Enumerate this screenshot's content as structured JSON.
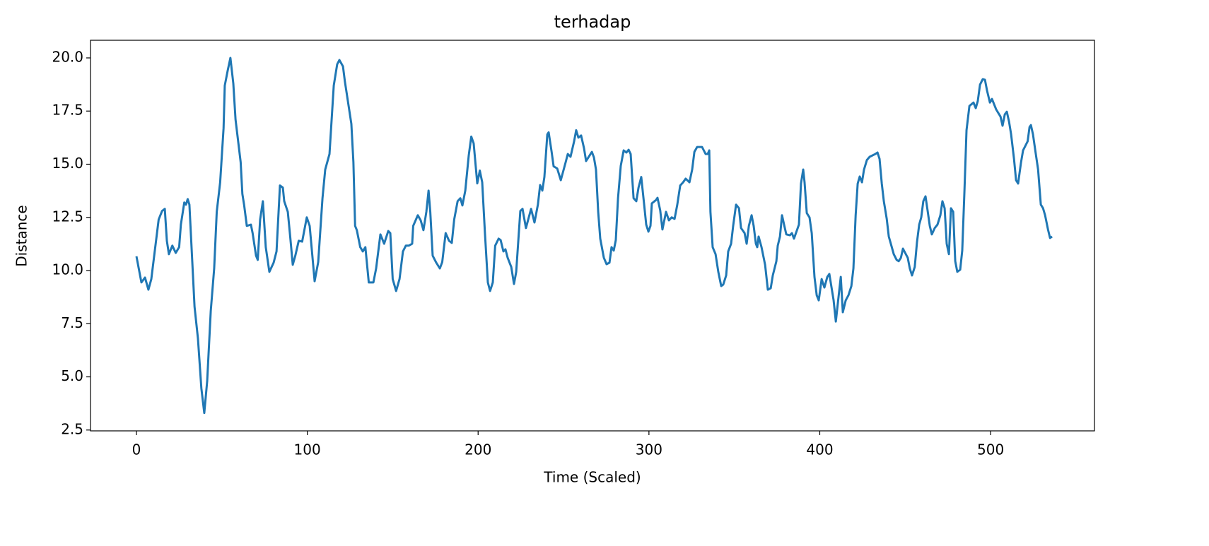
{
  "chart_data": {
    "type": "line",
    "title": "terhadap",
    "x_label": "Time (Scaled)",
    "y_label": "Distance",
    "color": "#1f77b4",
    "x": [
      0,
      2.9,
      5,
      7,
      8.7,
      13,
      15,
      16.6,
      17.8,
      19,
      21,
      23,
      25,
      26,
      28,
      29,
      30,
      31,
      34,
      36,
      38,
      39.7,
      41.4,
      43.5,
      45.5,
      47,
      49,
      51,
      51.7,
      53.4,
      55,
      56.7,
      58,
      61,
      62,
      63,
      64.6,
      67,
      68,
      70,
      71,
      72.4,
      74,
      75.7,
      77.8,
      80.3,
      82,
      84,
      85.7,
      86.5,
      88.6,
      90,
      91.5,
      93,
      95,
      97,
      99.7,
      101.4,
      104.3,
      106.4,
      108.9,
      110.5,
      113,
      115.5,
      117.5,
      118.8,
      120.9,
      122,
      125.8,
      127,
      128,
      129,
      131,
      132.5,
      134,
      136,
      138.7,
      140.3,
      142.8,
      145,
      147.4,
      148.6,
      150,
      152,
      154,
      156,
      157.7,
      159.4,
      161.4,
      162,
      164.7,
      166.4,
      168,
      169.7,
      171,
      172,
      173.4,
      175.5,
      177.6,
      179,
      181,
      183,
      184.6,
      186,
      188,
      189.6,
      190.8,
      192.5,
      194.5,
      196,
      197.4,
      199.5,
      201,
      202.4,
      204,
      205.7,
      207,
      208.6,
      210,
      212,
      213.2,
      214.8,
      216,
      217.3,
      219.4,
      221,
      222.3,
      224.7,
      226,
      228,
      231,
      233,
      235,
      236.3,
      237.6,
      238.8,
      240.5,
      241.3,
      243,
      244.2,
      246.3,
      248.4,
      251.2,
      252.5,
      254.1,
      256.2,
      257.4,
      258.7,
      260.3,
      262,
      263.2,
      266.6,
      267.8,
      269,
      270.3,
      271.5,
      273.6,
      275.2,
      276.9,
      278.1,
      279.4,
      280.6,
      281.9,
      283.5,
      285.2,
      286.8,
      288.1,
      289.3,
      291,
      292.6,
      293.9,
      295.5,
      297.2,
      298.4,
      299.7,
      300.9,
      301.7,
      304.2,
      305,
      306.6,
      307.9,
      310,
      311.7,
      313.3,
      315,
      316.6,
      318.3,
      320,
      321.5,
      323.7,
      325.3,
      326.6,
      328.2,
      331.1,
      333.2,
      334.4,
      335.3,
      336,
      337.3,
      339,
      340.6,
      342.3,
      343.5,
      345.2,
      346.4,
      348.1,
      349.3,
      351,
      352.7,
      353.9,
      356,
      357.2,
      358.5,
      360.1,
      361.3,
      362.6,
      363.4,
      364.2,
      365.9,
      368,
      369.6,
      371.3,
      372.5,
      374.6,
      375.4,
      376.7,
      377.9,
      379.1,
      380.4,
      382.5,
      383.7,
      384.9,
      387.8,
      389,
      390.3,
      391.1,
      392.4,
      394,
      395.3,
      396.9,
      398.2,
      399.4,
      401.1,
      402.7,
      404.4,
      405.6,
      408.1,
      409.4,
      411,
      412.3,
      413.5,
      415.2,
      416.8,
      418.5,
      419.7,
      421,
      422.2,
      423.4,
      424.7,
      425.9,
      427.6,
      429.2,
      432.5,
      433.8,
      435,
      436.3,
      437.5,
      439.2,
      440.4,
      441.6,
      443.3,
      445,
      446.2,
      447.5,
      448.7,
      451.5,
      452.7,
      454,
      455.6,
      456.9,
      458.2,
      459.4,
      460.6,
      461.9,
      463.1,
      464.4,
      465.6,
      467.3,
      468.9,
      470.6,
      471.8,
      473.1,
      474.3,
      475.6,
      476.8,
      478.1,
      479.3,
      480.5,
      482.2,
      483.4,
      484.7,
      485.9,
      487.6,
      490,
      491.3,
      492.5,
      493.8,
      495.4,
      496.7,
      497.9,
      499.6,
      500.8,
      503.3,
      505.8,
      507,
      508.3,
      509.5,
      510.8,
      512,
      513.7,
      514.9,
      516.1,
      517.8,
      519,
      521.7,
      522.8,
      523.6,
      524.8,
      526.1,
      527.8,
      529.4,
      530.7,
      531.9,
      533.6,
      534.8,
      536
    ],
    "values": [
      10.67,
      9.44,
      9.67,
      9.1,
      9.6,
      12.4,
      12.8,
      12.9,
      11.4,
      10.77,
      11.17,
      10.83,
      11.1,
      12.16,
      13.2,
      13.1,
      13.36,
      13.1,
      8.3,
      6.8,
      4.46,
      3.3,
      4.8,
      8.1,
      10.1,
      12.76,
      14.15,
      16.7,
      18.7,
      19.4,
      20,
      18.8,
      17.1,
      15.1,
      13.6,
      13.1,
      12.1,
      12.16,
      11.76,
      10.7,
      10.5,
      12.4,
      13.26,
      11.1,
      9.94,
      10.37,
      10.9,
      14,
      13.9,
      13.26,
      12.76,
      11.6,
      10.27,
      10.7,
      11.4,
      11.36,
      12.5,
      12.1,
      9.5,
      10.4,
      13.4,
      14.75,
      15.48,
      18.7,
      19.7,
      19.9,
      19.6,
      18.9,
      16.9,
      15.1,
      12.1,
      11.9,
      11.1,
      10.9,
      11.1,
      9.44,
      9.44,
      10.1,
      11.7,
      11.26,
      11.86,
      11.76,
      9.6,
      9.04,
      9.6,
      10.9,
      11.17,
      11.17,
      11.26,
      12.1,
      12.6,
      12.36,
      11.9,
      12.76,
      13.76,
      12.76,
      10.7,
      10.37,
      10.1,
      10.4,
      11.76,
      11.4,
      11.3,
      12.4,
      13.26,
      13.4,
      13.06,
      13.76,
      15.4,
      16.3,
      15.98,
      14.1,
      14.7,
      14.15,
      11.76,
      9.44,
      9.04,
      9.44,
      11.17,
      11.5,
      11.43,
      10.9,
      11,
      10.6,
      10.17,
      9.37,
      9.94,
      12.8,
      12.9,
      12,
      12.9,
      12.26,
      13.1,
      14.02,
      13.76,
      14.4,
      16.4,
      16.5,
      15.6,
      14.9,
      14.8,
      14.25,
      15.08,
      15.48,
      15.35,
      16.08,
      16.6,
      16.25,
      16.35,
      15.75,
      15.15,
      15.58,
      15.32,
      14.75,
      12.76,
      11.5,
      10.6,
      10.3,
      10.37,
      11.1,
      10.94,
      11.43,
      13.4,
      14.92,
      15.65,
      15.55,
      15.68,
      15.48,
      13.4,
      13.26,
      13.9,
      14.4,
      13.1,
      12.16,
      11.83,
      12.1,
      13.16,
      13.32,
      13.42,
      12.83,
      11.93,
      12.76,
      12.36,
      12.5,
      12.43,
      13.1,
      14,
      14.15,
      14.32,
      14.15,
      14.75,
      15.58,
      15.81,
      15.81,
      15.48,
      15.48,
      15.65,
      12.76,
      11.1,
      10.77,
      9.94,
      9.27,
      9.34,
      9.77,
      10.9,
      11.26,
      12.1,
      13.1,
      12.93,
      12,
      11.76,
      11.26,
      12.1,
      12.6,
      12.1,
      11.26,
      11.1,
      11.6,
      11.1,
      10.27,
      9.1,
      9.17,
      9.77,
      10.44,
      11.17,
      11.6,
      12.6,
      12.16,
      11.7,
      11.66,
      11.76,
      11.5,
      12.16,
      14.09,
      14.75,
      14.15,
      12.7,
      12.5,
      11.76,
      9.7,
      8.84,
      8.6,
      9.6,
      9.2,
      9.7,
      9.84,
      8.6,
      7.6,
      8.77,
      9.7,
      8.04,
      8.6,
      8.84,
      9.27,
      10.1,
      12.6,
      14.09,
      14.42,
      14.15,
      14.75,
      15.2,
      15.35,
      15.48,
      15.55,
      15.25,
      14.09,
      13.26,
      12.43,
      11.6,
      11.26,
      10.77,
      10.5,
      10.44,
      10.6,
      11.03,
      10.6,
      10.1,
      9.77,
      10.17,
      11.33,
      12.16,
      12.5,
      13.26,
      13.49,
      12.83,
      12.1,
      11.7,
      12,
      12.16,
      12.6,
      13.26,
      12.93,
      11.26,
      10.77,
      12.93,
      12.76,
      10.44,
      9.94,
      10.04,
      10.94,
      13.76,
      16.6,
      17.74,
      17.9,
      17.64,
      17.97,
      18.74,
      19,
      18.97,
      18.47,
      17.9,
      18.07,
      17.57,
      17.24,
      16.81,
      17.34,
      17.47,
      17,
      16.41,
      15.25,
      14.25,
      14.09,
      15.08,
      15.65,
      16.08,
      16.75,
      16.84,
      16.41,
      15.68,
      14.75,
      13.1,
      12.93,
      12.6,
      11.93,
      11.53,
      11.6
    ],
    "xlim": [
      -26.9,
      560.8
    ],
    "ylim": [
      2.46,
      20.83
    ],
    "xticks": [
      0,
      100,
      200,
      300,
      400,
      500
    ],
    "yticks": [
      2.5,
      {
        "value": 5,
        "label": "5.0"
      },
      7.5,
      {
        "value": 10,
        "label": "10.0"
      },
      12.5,
      {
        "value": 15,
        "label": "15.0"
      },
      17.5,
      {
        "value": 20,
        "label": "20.0"
      }
    ],
    "grid": false
  }
}
